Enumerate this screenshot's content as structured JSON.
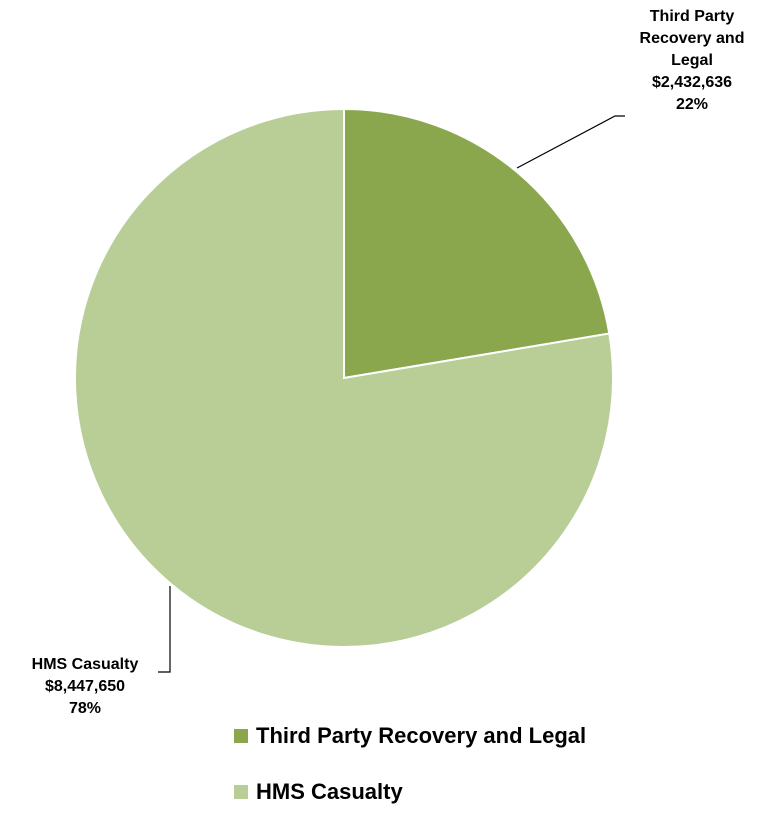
{
  "chart_data": {
    "type": "pie",
    "title": "",
    "start_angle_deg": 0,
    "direction": "clockwise",
    "legend_position": "bottom",
    "slices": [
      {
        "name": "Third Party Recovery and Legal",
        "label_lines": [
          "Third Party",
          "Recovery and",
          "Legal"
        ],
        "value": 2432636,
        "value_label": "$2,432,636",
        "percent": 22,
        "percent_label": "22%",
        "color": "#8aa74e"
      },
      {
        "name": "HMS Casualty",
        "label_lines": [
          "HMS Casualty"
        ],
        "value": 8447650,
        "value_label": "$8,447,650",
        "percent": 78,
        "percent_label": "78%",
        "color": "#b9cd96"
      }
    ]
  }
}
